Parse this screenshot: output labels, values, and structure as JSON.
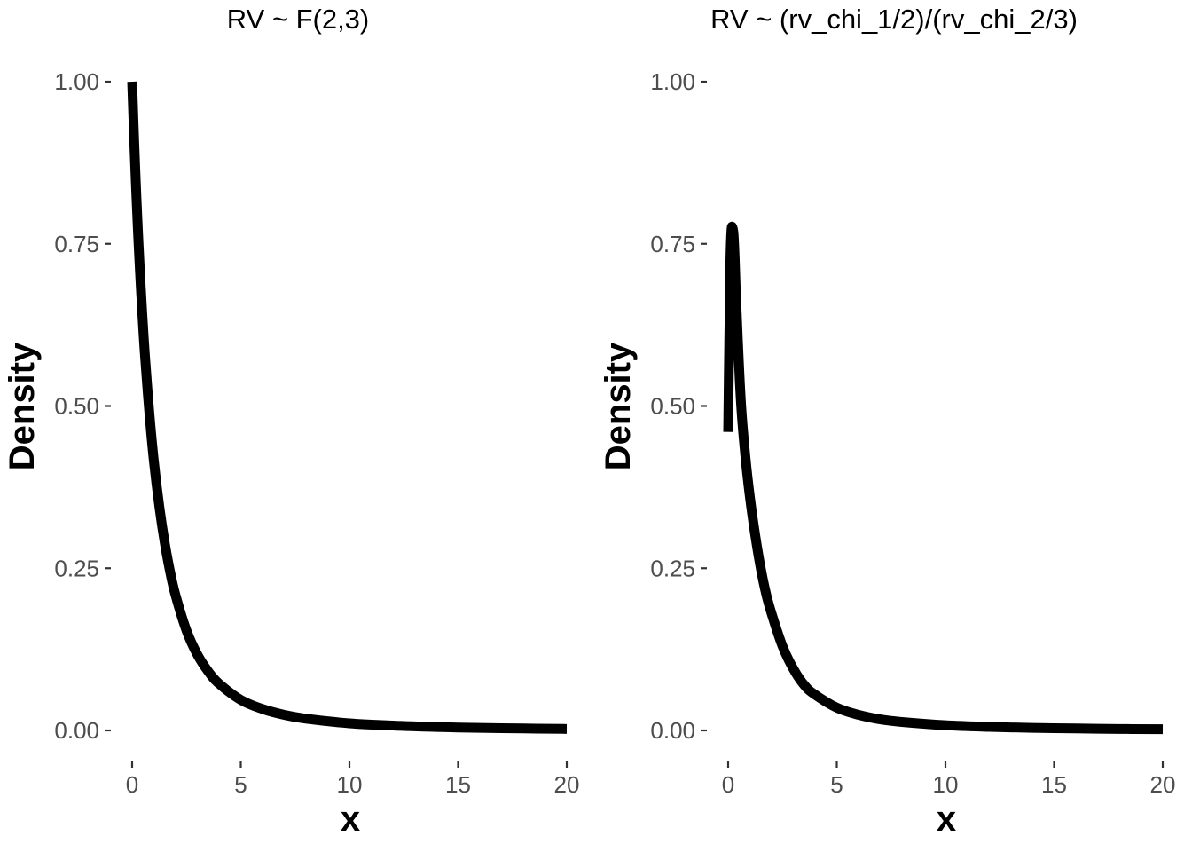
{
  "chart_data": [
    {
      "type": "line",
      "title": "RV ~ F(2,3)",
      "xlabel": "x",
      "ylabel": "Density",
      "xlim": [
        0,
        20
      ],
      "ylim": [
        0,
        1
      ],
      "xticks": [
        0,
        5,
        10,
        15,
        20
      ],
      "xtick_labels": [
        "0",
        "5",
        "10",
        "15",
        "20"
      ],
      "yticks": [
        0,
        0.25,
        0.5,
        0.75,
        1
      ],
      "ytick_labels": [
        "0.00",
        "0.25",
        "0.50",
        "0.75",
        "1.00"
      ],
      "grid": false,
      "line_color": "#000000",
      "series": [
        {
          "x": [
            0,
            0.1,
            0.2,
            0.3,
            0.4,
            0.5,
            0.6,
            0.8,
            1,
            1.25,
            1.5,
            1.75,
            2,
            2.5,
            3,
            3.5,
            4,
            5,
            6,
            7,
            8,
            10,
            12,
            14,
            16,
            18,
            20
          ],
          "y": [
            1,
            0.904,
            0.82,
            0.747,
            0.682,
            0.624,
            0.573,
            0.486,
            0.415,
            0.345,
            0.289,
            0.244,
            0.208,
            0.154,
            0.117,
            0.091,
            0.072,
            0.047,
            0.033,
            0.024,
            0.018,
            0.011,
            0.0075,
            0.0053,
            0.0039,
            0.003,
            0.0023
          ]
        }
      ]
    },
    {
      "type": "line",
      "title": "RV ~ (rv_chi_1/2)/(rv_chi_2/3)",
      "xlabel": "x",
      "ylabel": "Density",
      "xlim": [
        0,
        20
      ],
      "ylim": [
        0,
        1
      ],
      "xticks": [
        0,
        5,
        10,
        15,
        20
      ],
      "xtick_labels": [
        "0",
        "5",
        "10",
        "15",
        "20"
      ],
      "yticks": [
        0,
        0.25,
        0.5,
        0.75,
        1
      ],
      "ytick_labels": [
        "0.00",
        "0.25",
        "0.50",
        "0.75",
        "1.00"
      ],
      "grid": false,
      "line_color": "#000000",
      "series": [
        {
          "x": [
            0,
            0.05,
            0.1,
            0.15,
            0.2,
            0.25,
            0.3,
            0.35,
            0.45,
            0.6,
            0.8,
            1,
            1.25,
            1.5,
            1.75,
            2,
            2.5,
            3,
            3.5,
            4,
            5,
            6,
            7,
            8,
            10,
            12,
            14,
            16,
            18,
            20
          ],
          "y": [
            0.46,
            0.6,
            0.72,
            0.77,
            0.775,
            0.765,
            0.73,
            0.68,
            0.6,
            0.5,
            0.42,
            0.36,
            0.3,
            0.25,
            0.21,
            0.18,
            0.13,
            0.095,
            0.07,
            0.055,
            0.035,
            0.024,
            0.017,
            0.013,
            0.008,
            0.0055,
            0.004,
            0.003,
            0.0023,
            0.0018
          ]
        }
      ]
    }
  ]
}
